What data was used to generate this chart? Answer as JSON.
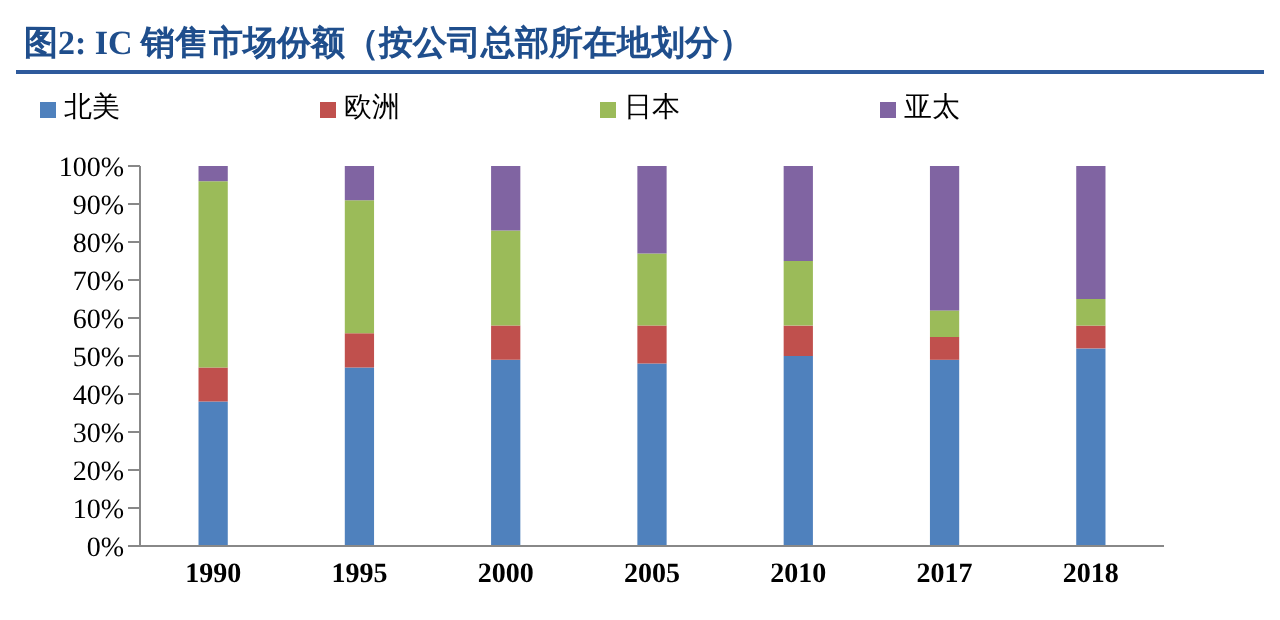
{
  "chart_data": {
    "type": "bar",
    "title": "图2: IC 销售市场份额（按公司总部所在地划分）",
    "categories": [
      "1990",
      "1995",
      "2000",
      "2005",
      "2010",
      "2017",
      "2018"
    ],
    "stacked": true,
    "series": [
      {
        "name": "北美",
        "color": "#4f81bd",
        "values": [
          38,
          47,
          49,
          48,
          50,
          49,
          52
        ]
      },
      {
        "name": "欧洲",
        "color": "#c0504d",
        "values": [
          9,
          9,
          9,
          10,
          8,
          6,
          6
        ]
      },
      {
        "name": "日本",
        "color": "#9bbb59",
        "values": [
          49,
          35,
          25,
          19,
          17,
          7,
          7
        ]
      },
      {
        "name": "亚太",
        "color": "#8064a2",
        "values": [
          4,
          9,
          17,
          23,
          25,
          38,
          35
        ]
      }
    ],
    "ylim": [
      0,
      100
    ],
    "yticks": [
      {
        "value": 0,
        "label": "0%"
      },
      {
        "value": 10,
        "label": "10%"
      },
      {
        "value": 20,
        "label": "20%"
      },
      {
        "value": 30,
        "label": "30%"
      },
      {
        "value": 40,
        "label": "40%"
      },
      {
        "value": 50,
        "label": "50%"
      },
      {
        "value": 60,
        "label": "60%"
      },
      {
        "value": 70,
        "label": "70%"
      },
      {
        "value": 80,
        "label": "80%"
      },
      {
        "value": 90,
        "label": "90%"
      },
      {
        "value": 100,
        "label": "100%"
      }
    ],
    "grid": false,
    "legend": "top"
  }
}
